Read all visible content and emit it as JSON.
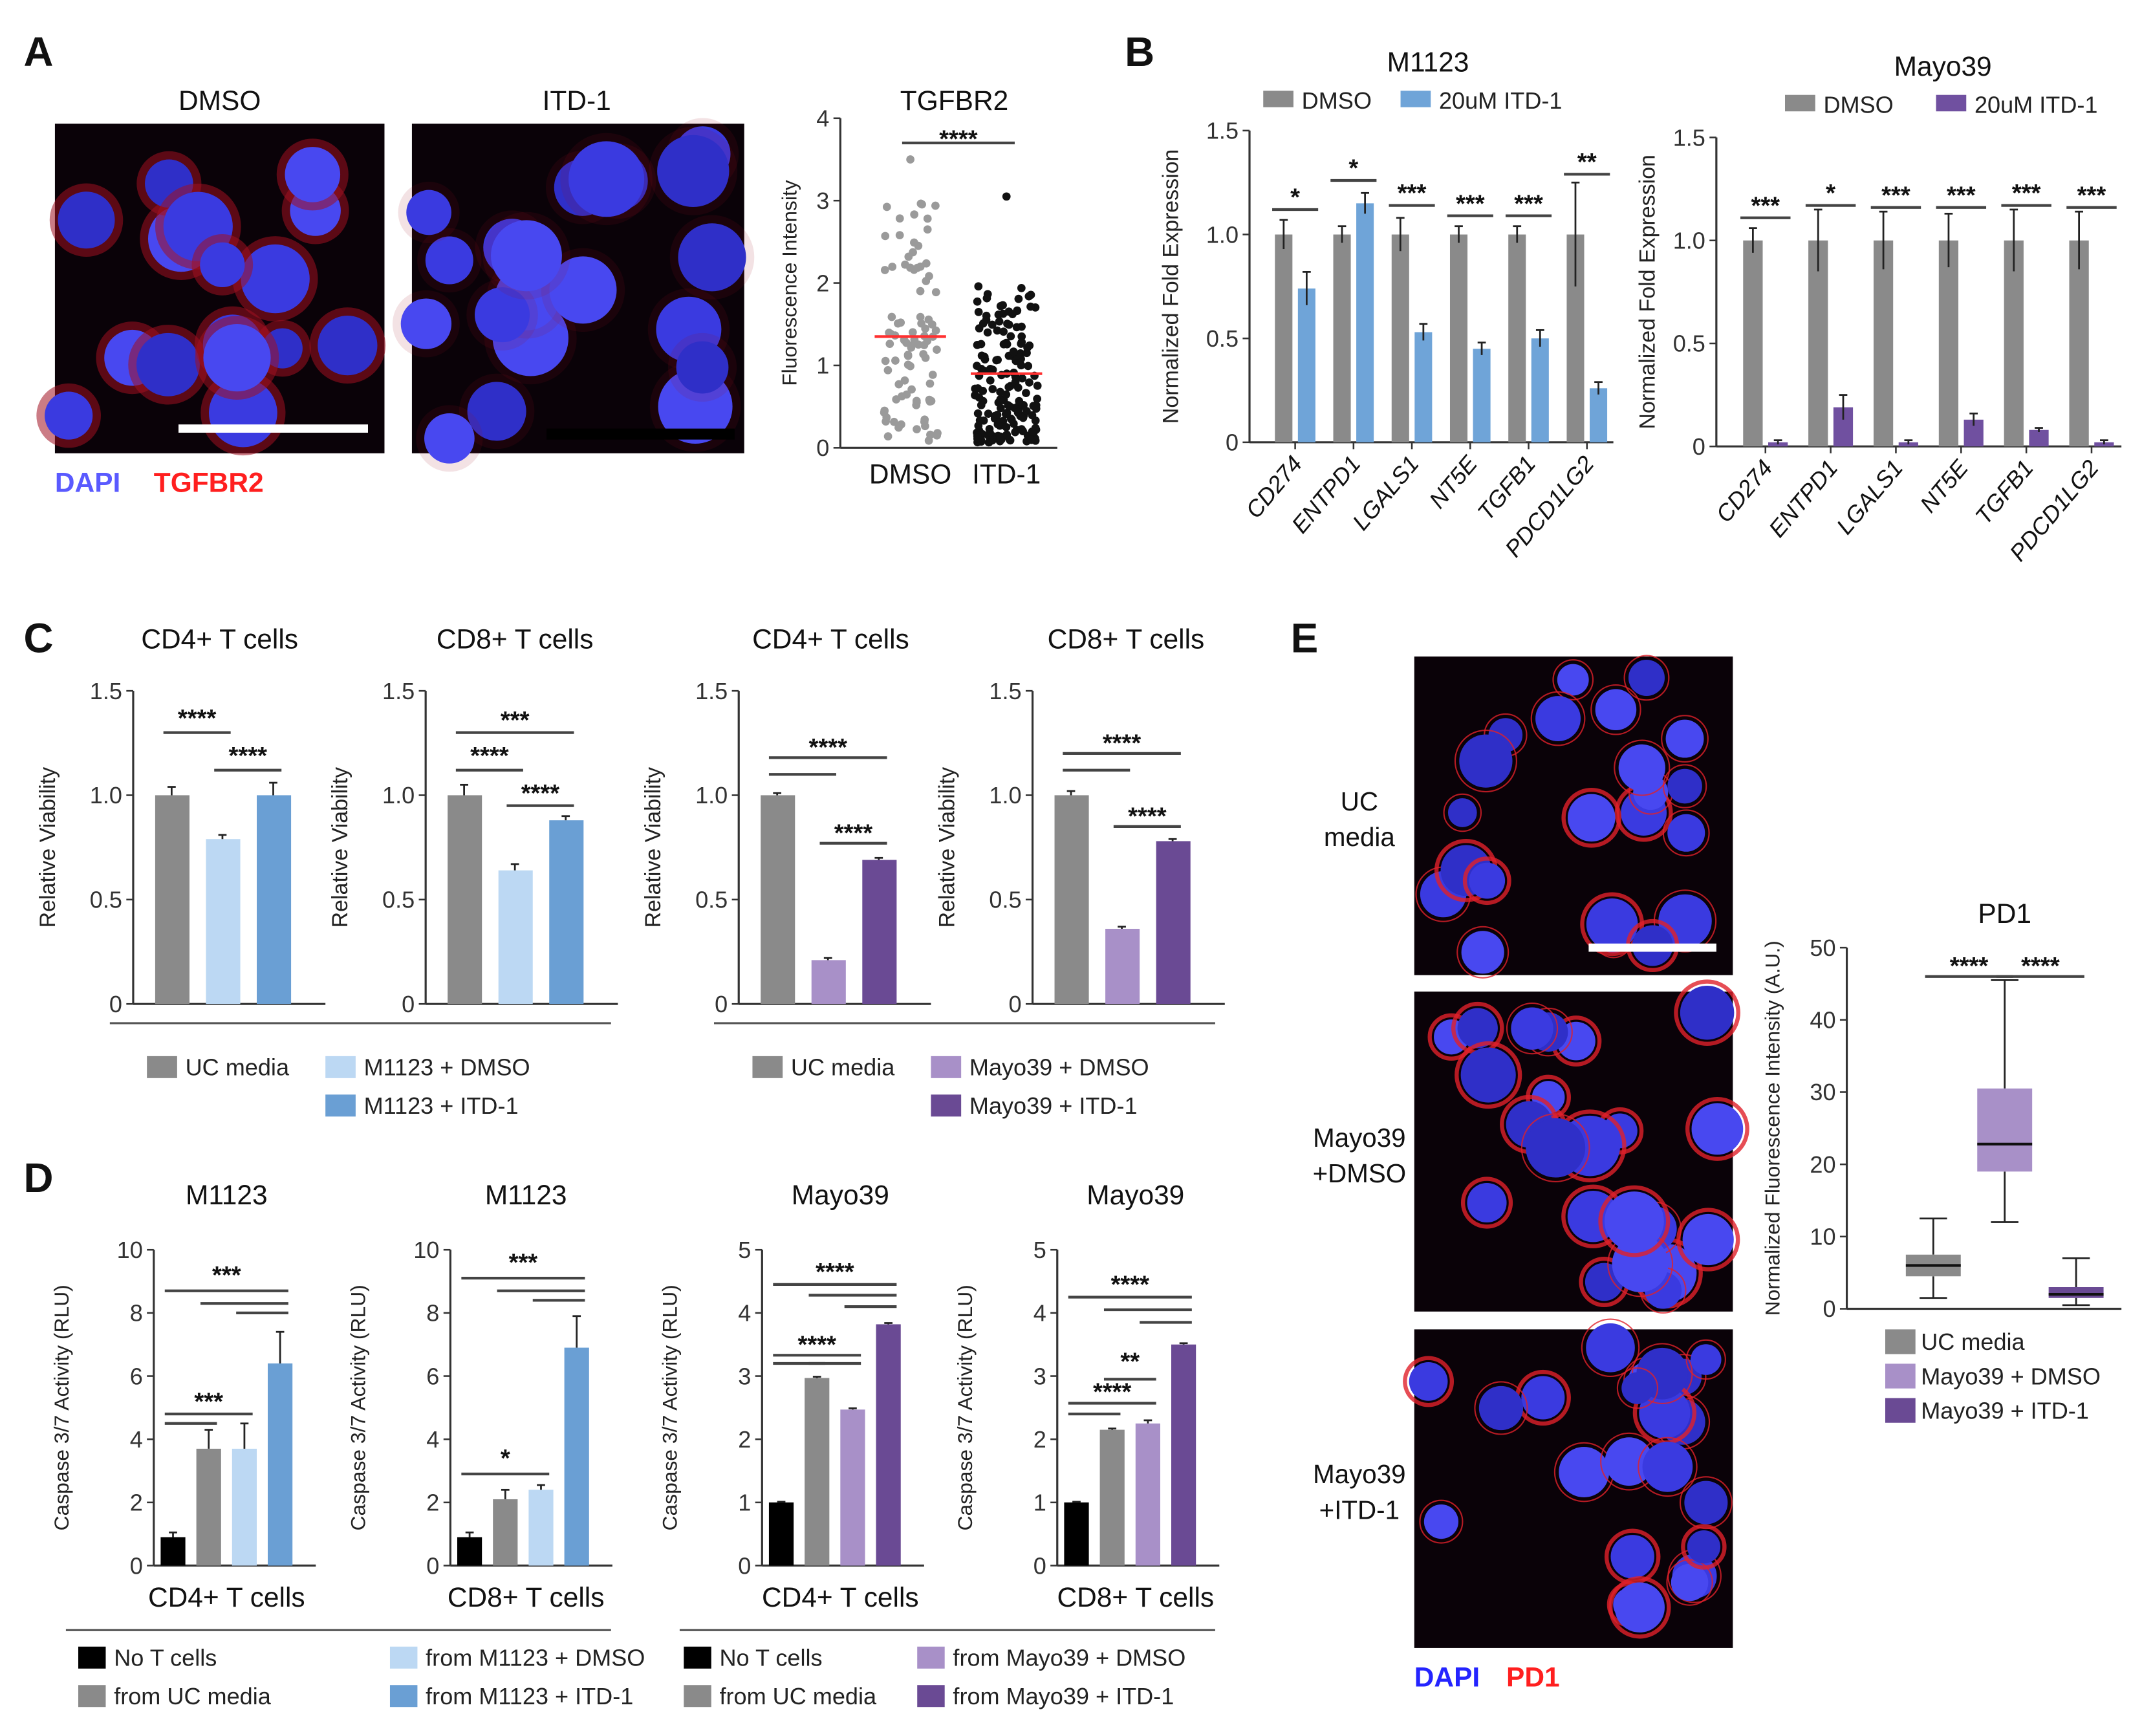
{
  "panel_labels": [
    "A",
    "B",
    "C",
    "D",
    "E"
  ],
  "panel_a": {
    "images": [
      {
        "label": "DMSO"
      },
      {
        "label": "ITD-1"
      }
    ],
    "stains": [
      {
        "text": "DAPI",
        "color": "#5a5aff"
      },
      {
        "text": "TGFBR2",
        "color": "#ff1f1f"
      }
    ]
  },
  "panel_b": {
    "legend_left": [
      {
        "label": "DMSO",
        "color": "#8a8a8a"
      },
      {
        "label": "20uM ITD-1",
        "color": "#6fa4d8"
      }
    ],
    "legend_right": [
      {
        "label": "DMSO",
        "color": "#8a8a8a"
      },
      {
        "label": "20uM ITD-1",
        "color": "#7050a0"
      }
    ]
  },
  "panel_c": {
    "legend_left": [
      {
        "label": "UC media",
        "color": "#8a8a8a"
      },
      {
        "label": "M1123 + DMSO",
        "color": "#bcd8f3"
      },
      {
        "label": "M1123 + ITD-1",
        "color": "#6a9fd4"
      }
    ],
    "legend_right": [
      {
        "label": "UC media",
        "color": "#8a8a8a"
      },
      {
        "label": "Mayo39 + DMSO",
        "color": "#a890c8"
      },
      {
        "label": "Mayo39 + ITD-1",
        "color": "#6a4a94"
      }
    ]
  },
  "panel_d": {
    "legend_left": [
      {
        "label": "No T cells",
        "color": "#000000"
      },
      {
        "label": "from UC media",
        "color": "#8a8a8a"
      },
      {
        "label": "from M1123 + DMSO",
        "color": "#bcd8f3"
      },
      {
        "label": "from M1123 + ITD-1",
        "color": "#6a9fd4"
      }
    ],
    "legend_right": [
      {
        "label": "No T cells",
        "color": "#000000"
      },
      {
        "label": "from UC media",
        "color": "#8a8a8a"
      },
      {
        "label": "from Mayo39 + DMSO",
        "color": "#a890c8"
      },
      {
        "label": "from Mayo39 + ITD-1",
        "color": "#6a4a94"
      }
    ]
  },
  "panel_e": {
    "images": [
      {
        "label": [
          "UC",
          "media"
        ]
      },
      {
        "label": [
          "Mayo39",
          "+DMSO"
        ]
      },
      {
        "label": [
          "Mayo39",
          "+ITD-1"
        ]
      }
    ],
    "stains": [
      {
        "text": "DAPI",
        "color": "#2424ff"
      },
      {
        "text": "PD1",
        "color": "#ff1f1f"
      }
    ],
    "legend": [
      {
        "label": "UC media",
        "color": "#8a8a8a"
      },
      {
        "label": "Mayo39 + DMSO",
        "color": "#a890c8"
      },
      {
        "label": "Mayo39 + ITD-1",
        "color": "#6a4a94"
      }
    ]
  },
  "chart_data": [
    {
      "type": "scatter",
      "title": "TGFBR2",
      "ylabel": "Fluorescence Intensity",
      "categories": [
        "DMSO",
        "ITD-1"
      ],
      "ylim": [
        0,
        4
      ],
      "yticks": [
        "0",
        "1",
        "2",
        "3",
        "4"
      ],
      "mean": [
        1.35,
        0.9
      ],
      "max": [
        3.5,
        3.05
      ],
      "min": [
        0,
        0
      ],
      "colors": [
        "#9a9a9a",
        "#111111"
      ],
      "mean_color": "#ff3030",
      "annotations": [
        {
          "label": "****",
          "lines": [
            [
              0,
              1,
              3.7
            ]
          ],
          "label_y": 3.75
        }
      ]
    },
    {
      "type": "grouped_bar",
      "title": "M1123",
      "ylabel": "Normalized Fold Expression",
      "categories": [
        "CD274",
        "ENTPD1",
        "LGALS1",
        "NT5E",
        "TGFB1",
        "PDCD1LG2"
      ],
      "ylim": [
        0,
        1.5
      ],
      "yticks": [
        "0",
        "0.5",
        "1.0",
        "1.5"
      ],
      "series": [
        {
          "name": "DMSO",
          "color": "#8a8a8a",
          "values": [
            1,
            1,
            1,
            1,
            1,
            1
          ],
          "errors": [
            0.07,
            0.04,
            0.08,
            0.04,
            0.04,
            0.25
          ]
        },
        {
          "name": "20uM ITD-1",
          "color": "#6fa4d8",
          "values": [
            0.74,
            1.15,
            0.53,
            0.45,
            0.5,
            0.26
          ],
          "errors": [
            0.08,
            0.05,
            0.04,
            0.03,
            0.04,
            0.03
          ]
        }
      ],
      "annotations": [
        "*",
        "*",
        "***",
        "***",
        "***",
        "**"
      ],
      "annotation_y": [
        1.12,
        1.26,
        1.14,
        1.09,
        1.09,
        1.29
      ]
    },
    {
      "type": "grouped_bar",
      "title": "Mayo39",
      "ylabel": "Normalized Fold Expression",
      "categories": [
        "CD274",
        "ENTPD1",
        "LGALS1",
        "NT5E",
        "TGFB1",
        "PDCD1LG2"
      ],
      "ylim": [
        0,
        1.5
      ],
      "yticks": [
        "0",
        "0.5",
        "1.0",
        "1.5"
      ],
      "series": [
        {
          "name": "DMSO",
          "color": "#8a8a8a",
          "values": [
            1,
            1,
            1,
            1,
            1,
            1
          ],
          "errors": [
            0.06,
            0.15,
            0.14,
            0.13,
            0.15,
            0.14
          ]
        },
        {
          "name": "20uM ITD-1",
          "color": "#7050a0",
          "values": [
            0.02,
            0.19,
            0.02,
            0.13,
            0.08,
            0.02
          ],
          "errors": [
            0.01,
            0.06,
            0.01,
            0.03,
            0.01,
            0.01
          ]
        }
      ],
      "annotations": [
        "***",
        "*",
        "***",
        "***",
        "***",
        "***"
      ],
      "annotation_y": [
        1.11,
        1.17,
        1.16,
        1.16,
        1.17,
        1.16
      ]
    },
    {
      "type": "bar",
      "title": "CD4+ T cells",
      "ylabel": "Relative Viability",
      "ylim": [
        0,
        1.5
      ],
      "yticks": [
        "0",
        "0.5",
        "1.0",
        "1.5"
      ],
      "categories": [
        "UC media",
        "M1123 + DMSO",
        "M1123 + ITD-1"
      ],
      "values": [
        1.0,
        0.79,
        1.0
      ],
      "errors": [
        0.04,
        0.02,
        0.06
      ],
      "colors": [
        "#8a8a8a",
        "#bcd8f3",
        "#6a9fd4"
      ],
      "annotations": [
        {
          "label": "****",
          "label_y": 1.37,
          "lines": [
            [
              0,
              1,
              1.3
            ]
          ]
        },
        {
          "label": "****",
          "label_y": 1.19,
          "lines": [
            [
              1,
              2,
              1.12
            ]
          ]
        }
      ]
    },
    {
      "type": "bar",
      "title": "CD8+ T cells",
      "ylabel": "Relative Viability",
      "ylim": [
        0,
        1.5
      ],
      "yticks": [
        "0",
        "0.5",
        "1.0",
        "1.5"
      ],
      "categories": [
        "UC media",
        "M1123 + DMSO",
        "M1123 + ITD-1"
      ],
      "values": [
        1.0,
        0.64,
        0.88
      ],
      "errors": [
        0.05,
        0.03,
        0.02
      ],
      "colors": [
        "#8a8a8a",
        "#bcd8f3",
        "#6a9fd4"
      ],
      "annotations": [
        {
          "label": "***",
          "label_y": 1.36,
          "lines": [
            [
              0,
              2,
              1.3
            ]
          ]
        },
        {
          "label": "****",
          "label_y": 1.19,
          "lines": [
            [
              0,
              1,
              1.12
            ]
          ]
        },
        {
          "label": "****",
          "label_y": 1.01,
          "lines": [
            [
              1,
              2,
              0.95
            ]
          ]
        }
      ]
    },
    {
      "type": "bar",
      "title": "CD4+ T cells",
      "ylabel": "Relative Viability",
      "ylim": [
        0,
        1.5
      ],
      "yticks": [
        "0",
        "0.5",
        "1.0",
        "1.5"
      ],
      "categories": [
        "UC media",
        "Mayo39 + DMSO",
        "Mayo39 + ITD-1"
      ],
      "values": [
        1.0,
        0.21,
        0.69
      ],
      "errors": [
        0.01,
        0.01,
        0.01
      ],
      "colors": [
        "#8a8a8a",
        "#a890c8",
        "#6a4a94"
      ],
      "annotations": [
        {
          "label": "****",
          "label_y": 1.23,
          "lines": [
            [
              0,
              2,
              1.18
            ],
            [
              0,
              1,
              1.1
            ]
          ]
        },
        {
          "label": "****",
          "label_y": 0.82,
          "lines": [
            [
              1,
              2,
              0.77
            ]
          ]
        }
      ]
    },
    {
      "type": "bar",
      "title": "CD8+ T cells",
      "ylabel": "Relative Viability",
      "ylim": [
        0,
        1.5
      ],
      "yticks": [
        "0",
        "0.5",
        "1.0",
        "1.5"
      ],
      "categories": [
        "UC media",
        "Mayo39 + DMSO",
        "Mayo39 + ITD-1"
      ],
      "values": [
        1.0,
        0.36,
        0.78
      ],
      "errors": [
        0.02,
        0.01,
        0.01
      ],
      "colors": [
        "#8a8a8a",
        "#a890c8",
        "#6a4a94"
      ],
      "annotations": [
        {
          "label": "****",
          "label_y": 1.25,
          "lines": [
            [
              0,
              2,
              1.2
            ],
            [
              0,
              1,
              1.12
            ]
          ]
        },
        {
          "label": "****",
          "label_y": 0.9,
          "lines": [
            [
              1,
              2,
              0.85
            ]
          ]
        }
      ]
    },
    {
      "type": "bar",
      "title": "M1123",
      "ylabel": "Caspase 3/7 Activity (RLU)",
      "xlabel": "CD4+ T cells",
      "ylim": [
        0,
        10
      ],
      "yticks": [
        "0",
        "2",
        "4",
        "6",
        "8",
        "10"
      ],
      "categories": [
        "No T cells",
        "from UC media",
        "from M1123 + DMSO",
        "from M1123 + ITD-1"
      ],
      "values": [
        0.9,
        3.7,
        3.7,
        6.4
      ],
      "errors": [
        0.15,
        0.6,
        0.8,
        1.0
      ],
      "colors": [
        "#000000",
        "#8a8a8a",
        "#bcd8f3",
        "#6a9fd4"
      ],
      "annotations": [
        {
          "label": "***",
          "label_y": 9.2,
          "lines": [
            [
              0,
              3,
              8.7
            ],
            [
              1,
              3,
              8.3
            ],
            [
              2,
              3,
              8.0
            ]
          ]
        },
        {
          "label": "***",
          "label_y": 5.2,
          "lines": [
            [
              0,
              2,
              4.8
            ],
            [
              0,
              1,
              4.5
            ]
          ]
        }
      ]
    },
    {
      "type": "bar",
      "title": "M1123",
      "ylabel": "Caspase 3/7 Activity (RLU)",
      "xlabel": "CD8+ T cells",
      "ylim": [
        0,
        10
      ],
      "yticks": [
        "0",
        "2",
        "4",
        "6",
        "8",
        "10"
      ],
      "categories": [
        "No T cells",
        "from UC media",
        "from M1123 + DMSO",
        "from M1123 + ITD-1"
      ],
      "values": [
        0.9,
        2.1,
        2.4,
        6.9
      ],
      "errors": [
        0.15,
        0.3,
        0.15,
        1.0
      ],
      "colors": [
        "#000000",
        "#8a8a8a",
        "#bcd8f3",
        "#6a9fd4"
      ],
      "annotations": [
        {
          "label": "***",
          "label_y": 9.6,
          "lines": [
            [
              0,
              3,
              9.1
            ],
            [
              1,
              3,
              8.7
            ],
            [
              2,
              3,
              8.4
            ]
          ]
        },
        {
          "label": "*",
          "label_y": 3.4,
          "lines": [
            [
              0,
              2,
              2.9
            ]
          ]
        }
      ]
    },
    {
      "type": "bar",
      "title": "Mayo39",
      "ylabel": "Caspase 3/7 Activity (RLU)",
      "xlabel": "CD4+ T cells",
      "ylim": [
        0,
        5
      ],
      "yticks": [
        "0",
        "1",
        "2",
        "3",
        "4",
        "5"
      ],
      "categories": [
        "No T cells",
        "from UC media",
        "from Mayo39 + DMSO",
        "from Mayo39 + ITD-1"
      ],
      "values": [
        1.0,
        2.97,
        2.47,
        3.82
      ],
      "errors": [
        0.01,
        0.02,
        0.02,
        0.02
      ],
      "colors": [
        "#000000",
        "#8a8a8a",
        "#a890c8",
        "#6a4a94"
      ],
      "annotations": [
        {
          "label": "****",
          "label_y": 4.65,
          "lines": [
            [
              0,
              3,
              4.45
            ],
            [
              1,
              3,
              4.28
            ],
            [
              2,
              3,
              4.1
            ]
          ]
        },
        {
          "label": "****",
          "label_y": 3.5,
          "lines": [
            [
              0,
              2,
              3.33
            ],
            [
              0,
              1,
              3.2
            ],
            [
              1,
              2,
              3.2
            ]
          ]
        }
      ]
    },
    {
      "type": "bar",
      "title": "Mayo39",
      "ylabel": "Caspase 3/7 Activity (RLU)",
      "xlabel": "CD8+ T cells",
      "ylim": [
        0,
        5
      ],
      "yticks": [
        "0",
        "1",
        "2",
        "3",
        "4",
        "5"
      ],
      "categories": [
        "No T cells",
        "from UC media",
        "from Mayo39 + DMSO",
        "from Mayo39 + ITD-1"
      ],
      "values": [
        1.0,
        2.15,
        2.25,
        3.5
      ],
      "errors": [
        0.01,
        0.02,
        0.05,
        0.02
      ],
      "colors": [
        "#000000",
        "#8a8a8a",
        "#a890c8",
        "#6a4a94"
      ],
      "annotations": [
        {
          "label": "****",
          "label_y": 4.45,
          "lines": [
            [
              0,
              3,
              4.25
            ],
            [
              1,
              3,
              4.05
            ],
            [
              2,
              3,
              3.85
            ]
          ]
        },
        {
          "label": "**",
          "label_y": 3.1,
          "lines": [
            [
              1,
              2,
              2.95
            ]
          ]
        },
        {
          "label": "****",
          "label_y": 2.75,
          "lines": [
            [
              0,
              2,
              2.57
            ],
            [
              0,
              1,
              2.4
            ]
          ]
        }
      ]
    },
    {
      "type": "box",
      "title": "PD1",
      "ylabel": "Normalized Fluorescence Intensity (A.U.)",
      "ylim": [
        0,
        50
      ],
      "yticks": [
        "0",
        "10",
        "20",
        "30",
        "40",
        "50"
      ],
      "categories": [
        "UC media",
        "Mayo39 + DMSO",
        "Mayo39 + ITD-1"
      ],
      "boxes": [
        {
          "min": 1.5,
          "q1": 4.5,
          "median": 6,
          "q3": 7.5,
          "max": 12.5
        },
        {
          "min": 12,
          "q1": 19,
          "median": 22.8,
          "q3": 30.5,
          "max": 45.5
        },
        {
          "min": 0.5,
          "q1": 1.5,
          "median": 2,
          "q3": 3,
          "max": 7
        }
      ],
      "colors": [
        "#8a8a8a",
        "#a890c8",
        "#6a4a94"
      ],
      "annotations": [
        {
          "label": "****",
          "label_y": 47.5,
          "lines": [
            [
              0,
              1,
              46
            ]
          ]
        },
        {
          "label": "****",
          "label_y": 47.5,
          "lines": [
            [
              1,
              2,
              46
            ]
          ]
        }
      ]
    }
  ]
}
